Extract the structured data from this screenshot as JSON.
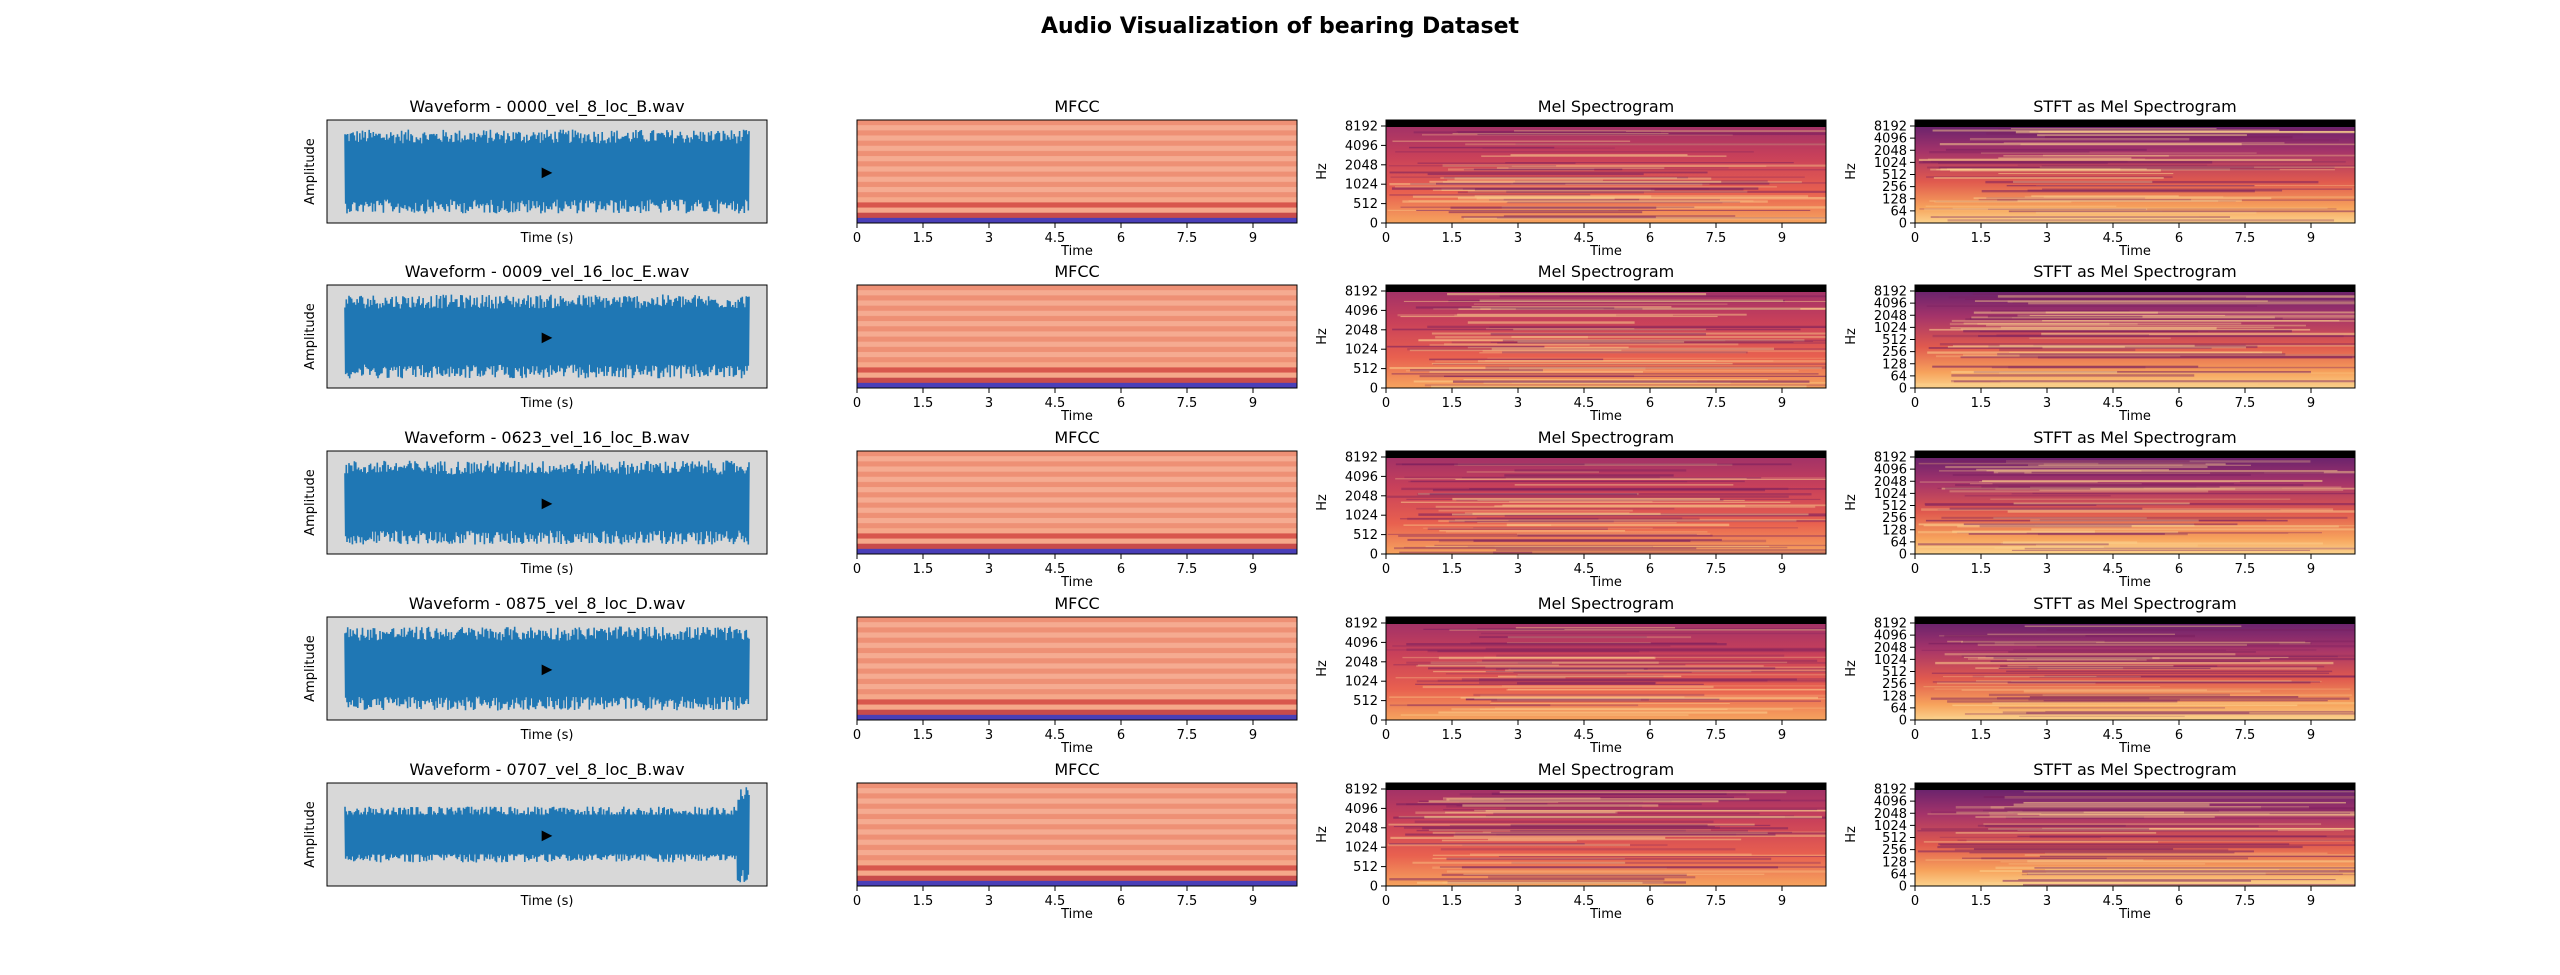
{
  "title": "Audio Visualization of bearing Dataset",
  "labels": {
    "amplitude": "Amplitude",
    "time_s": "Time (s)",
    "time": "Time",
    "hz": "Hz",
    "play": "▶"
  },
  "colors": {
    "waveform": "#1f77b4",
    "waveform_bg": "#d8d8d8",
    "mfcc_band": "#f0957a",
    "mfcc_low": "#4a3fb8",
    "mel_top": "#000000"
  },
  "chart_data": [
    {
      "row": 1,
      "file": "0000_vel_8_loc_B.wav",
      "waveform": {
        "type": "line",
        "title": "Waveform - 0000_vel_8_loc_B.wav",
        "xlabel": "Time (s)",
        "ylabel": "Amplitude",
        "envelope": "steady"
      },
      "mfcc": {
        "type": "heatmap",
        "title": "MFCC",
        "xlabel": "Time",
        "xticks": [
          "0",
          "1.5",
          "3",
          "4.5",
          "6",
          "7.5",
          "9"
        ],
        "xlim": [
          0,
          10
        ]
      },
      "mel": {
        "type": "heatmap",
        "title": "Mel Spectrogram",
        "xlabel": "Time",
        "ylabel": "Hz",
        "yticks": [
          "0",
          "512",
          "1024",
          "2048",
          "4096",
          "8192"
        ],
        "xticks": [
          "0",
          "1.5",
          "3",
          "4.5",
          "6",
          "7.5",
          "9"
        ],
        "xlim": [
          0,
          10
        ]
      },
      "stft": {
        "type": "heatmap",
        "title": "STFT as Mel Spectrogram",
        "xlabel": "Time",
        "ylabel": "Hz",
        "yticks": [
          "0",
          "64",
          "128",
          "256",
          "512",
          "1024",
          "2048",
          "4096",
          "8192"
        ],
        "xticks": [
          "0",
          "1.5",
          "3",
          "4.5",
          "6",
          "7.5",
          "9"
        ],
        "xlim": [
          0,
          10
        ]
      }
    },
    {
      "row": 2,
      "file": "0009_vel_16_loc_E.wav",
      "waveform": {
        "type": "line",
        "title": "Waveform - 0009_vel_16_loc_E.wav",
        "xlabel": "Time (s)",
        "ylabel": "Amplitude",
        "envelope": "steady"
      },
      "mfcc": {
        "type": "heatmap",
        "title": "MFCC",
        "xlabel": "Time",
        "xticks": [
          "0",
          "1.5",
          "3",
          "4.5",
          "6",
          "7.5",
          "9"
        ],
        "xlim": [
          0,
          10
        ]
      },
      "mel": {
        "type": "heatmap",
        "title": "Mel Spectrogram",
        "xlabel": "Time",
        "ylabel": "Hz",
        "yticks": [
          "0",
          "512",
          "1024",
          "2048",
          "4096",
          "8192"
        ],
        "xticks": [
          "0",
          "1.5",
          "3",
          "4.5",
          "6",
          "7.5",
          "9"
        ],
        "xlim": [
          0,
          10
        ]
      },
      "stft": {
        "type": "heatmap",
        "title": "STFT as Mel Spectrogram",
        "xlabel": "Time",
        "ylabel": "Hz",
        "yticks": [
          "0",
          "64",
          "128",
          "256",
          "512",
          "1024",
          "2048",
          "4096",
          "8192"
        ],
        "xticks": [
          "0",
          "1.5",
          "3",
          "4.5",
          "6",
          "7.5",
          "9"
        ],
        "xlim": [
          0,
          10
        ]
      }
    },
    {
      "row": 3,
      "file": "0623_vel_16_loc_B.wav",
      "waveform": {
        "type": "line",
        "title": "Waveform - 0623_vel_16_loc_B.wav",
        "xlabel": "Time (s)",
        "ylabel": "Amplitude",
        "envelope": "steady"
      },
      "mfcc": {
        "type": "heatmap",
        "title": "MFCC",
        "xlabel": "Time",
        "xticks": [
          "0",
          "1.5",
          "3",
          "4.5",
          "6",
          "7.5",
          "9"
        ],
        "xlim": [
          0,
          10
        ]
      },
      "mel": {
        "type": "heatmap",
        "title": "Mel Spectrogram",
        "xlabel": "Time",
        "ylabel": "Hz",
        "yticks": [
          "0",
          "512",
          "1024",
          "2048",
          "4096",
          "8192"
        ],
        "xticks": [
          "0",
          "1.5",
          "3",
          "4.5",
          "6",
          "7.5",
          "9"
        ],
        "xlim": [
          0,
          10
        ]
      },
      "stft": {
        "type": "heatmap",
        "title": "STFT as Mel Spectrogram",
        "xlabel": "Time",
        "ylabel": "Hz",
        "yticks": [
          "0",
          "64",
          "128",
          "256",
          "512",
          "1024",
          "2048",
          "4096",
          "8192"
        ],
        "xticks": [
          "0",
          "1.5",
          "3",
          "4.5",
          "6",
          "7.5",
          "9"
        ],
        "xlim": [
          0,
          10
        ]
      }
    },
    {
      "row": 4,
      "file": "0875_vel_8_loc_D.wav",
      "waveform": {
        "type": "line",
        "title": "Waveform - 0875_vel_8_loc_D.wav",
        "xlabel": "Time (s)",
        "ylabel": "Amplitude",
        "envelope": "steady"
      },
      "mfcc": {
        "type": "heatmap",
        "title": "MFCC",
        "xlabel": "Time",
        "xticks": [
          "0",
          "1.5",
          "3",
          "4.5",
          "6",
          "7.5",
          "9"
        ],
        "xlim": [
          0,
          10
        ]
      },
      "mel": {
        "type": "heatmap",
        "title": "Mel Spectrogram",
        "xlabel": "Time",
        "ylabel": "Hz",
        "yticks": [
          "0",
          "512",
          "1024",
          "2048",
          "4096",
          "8192"
        ],
        "xticks": [
          "0",
          "1.5",
          "3",
          "4.5",
          "6",
          "7.5",
          "9"
        ],
        "xlim": [
          0,
          10
        ]
      },
      "stft": {
        "type": "heatmap",
        "title": "STFT as Mel Spectrogram",
        "xlabel": "Time",
        "ylabel": "Hz",
        "yticks": [
          "0",
          "64",
          "128",
          "256",
          "512",
          "1024",
          "2048",
          "4096",
          "8192"
        ],
        "xticks": [
          "0",
          "1.5",
          "3",
          "4.5",
          "6",
          "7.5",
          "9"
        ],
        "xlim": [
          0,
          10
        ]
      }
    },
    {
      "row": 5,
      "file": "0707_vel_8_loc_B.wav",
      "waveform": {
        "type": "line",
        "title": "Waveform - 0707_vel_8_loc_B.wav",
        "xlabel": "Time (s)",
        "ylabel": "Amplitude",
        "envelope": "spike-at-end"
      },
      "mfcc": {
        "type": "heatmap",
        "title": "MFCC",
        "xlabel": "Time",
        "xticks": [
          "0",
          "1.5",
          "3",
          "4.5",
          "6",
          "7.5",
          "9"
        ],
        "xlim": [
          0,
          10
        ]
      },
      "mel": {
        "type": "heatmap",
        "title": "Mel Spectrogram",
        "xlabel": "Time",
        "ylabel": "Hz",
        "yticks": [
          "0",
          "512",
          "1024",
          "2048",
          "4096",
          "8192"
        ],
        "xticks": [
          "0",
          "1.5",
          "3",
          "4.5",
          "6",
          "7.5",
          "9"
        ],
        "xlim": [
          0,
          10
        ]
      },
      "stft": {
        "type": "heatmap",
        "title": "STFT as Mel Spectrogram",
        "xlabel": "Time",
        "ylabel": "Hz",
        "yticks": [
          "0",
          "64",
          "128",
          "256",
          "512",
          "1024",
          "2048",
          "4096",
          "8192"
        ],
        "xticks": [
          "0",
          "1.5",
          "3",
          "4.5",
          "6",
          "7.5",
          "9"
        ],
        "xlim": [
          0,
          10
        ]
      }
    }
  ]
}
